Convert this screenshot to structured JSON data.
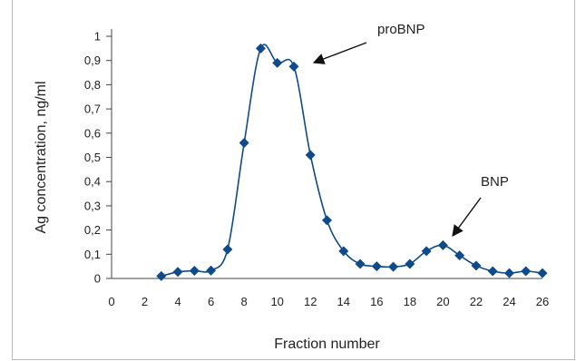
{
  "chart_data": {
    "type": "line",
    "title": "",
    "xlabel": "Fraction number",
    "ylabel": "Ag concentration, ng/ml",
    "xlim": [
      0,
      26
    ],
    "ylim": [
      0,
      1
    ],
    "x_ticks": [
      "0",
      "2",
      "4",
      "6",
      "8",
      "10",
      "12",
      "14",
      "16",
      "18",
      "20",
      "22",
      "24",
      "26"
    ],
    "y_ticks": [
      "0",
      "0,1",
      "0,2",
      "0,3",
      "0,4",
      "0,5",
      "0,6",
      "0,7",
      "0,8",
      "0,9",
      "1"
    ],
    "grid": false,
    "series": [
      {
        "x": [
          3,
          4,
          5,
          6,
          7,
          8,
          9,
          10,
          11,
          12,
          13,
          14,
          15,
          16,
          17,
          18,
          19,
          20,
          21,
          22,
          23,
          24,
          25,
          26
        ],
        "y": [
          0.01,
          0.027,
          0.032,
          0.033,
          0.12,
          0.56,
          0.95,
          0.89,
          0.875,
          0.51,
          0.24,
          0.113,
          0.06,
          0.05,
          0.048,
          0.06,
          0.113,
          0.137,
          0.095,
          0.053,
          0.03,
          0.022,
          0.03,
          0.022
        ],
        "color": "#0f4a8a",
        "marker": "diamond"
      }
    ],
    "annotations": [
      {
        "text": "proBNP",
        "x": 11.2,
        "y": 0.89
      },
      {
        "text": "BNP",
        "x": 20.3,
        "y": 0.15
      }
    ]
  }
}
